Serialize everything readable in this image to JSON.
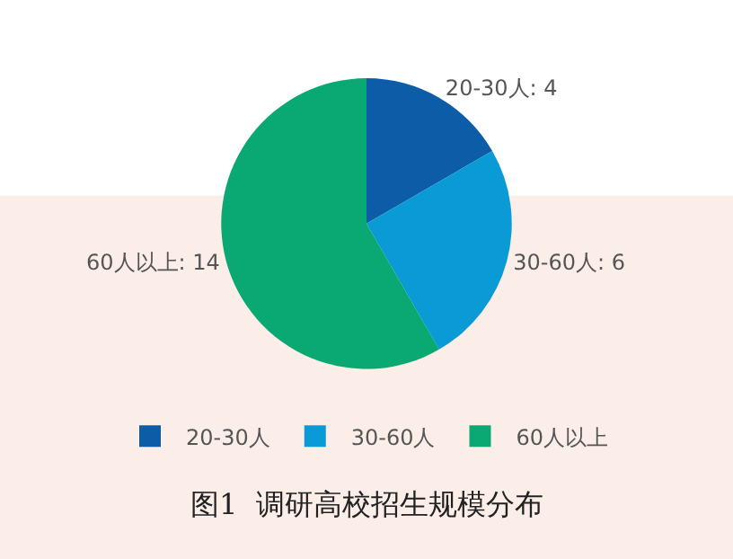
{
  "chart_data": {
    "type": "pie",
    "categories": [
      "20-30人",
      "30-60人",
      "60人以上"
    ],
    "values": [
      4,
      6,
      14
    ],
    "value_labels": [
      "20-30人: 4",
      "30-60人: 6",
      "60人以上: 14"
    ],
    "colors": [
      "#0d5ca8",
      "#0a9ad6",
      "#0aa872"
    ],
    "legend": "bottom",
    "annotations": [
      "图1  调研高校招生规模分布"
    ]
  }
}
